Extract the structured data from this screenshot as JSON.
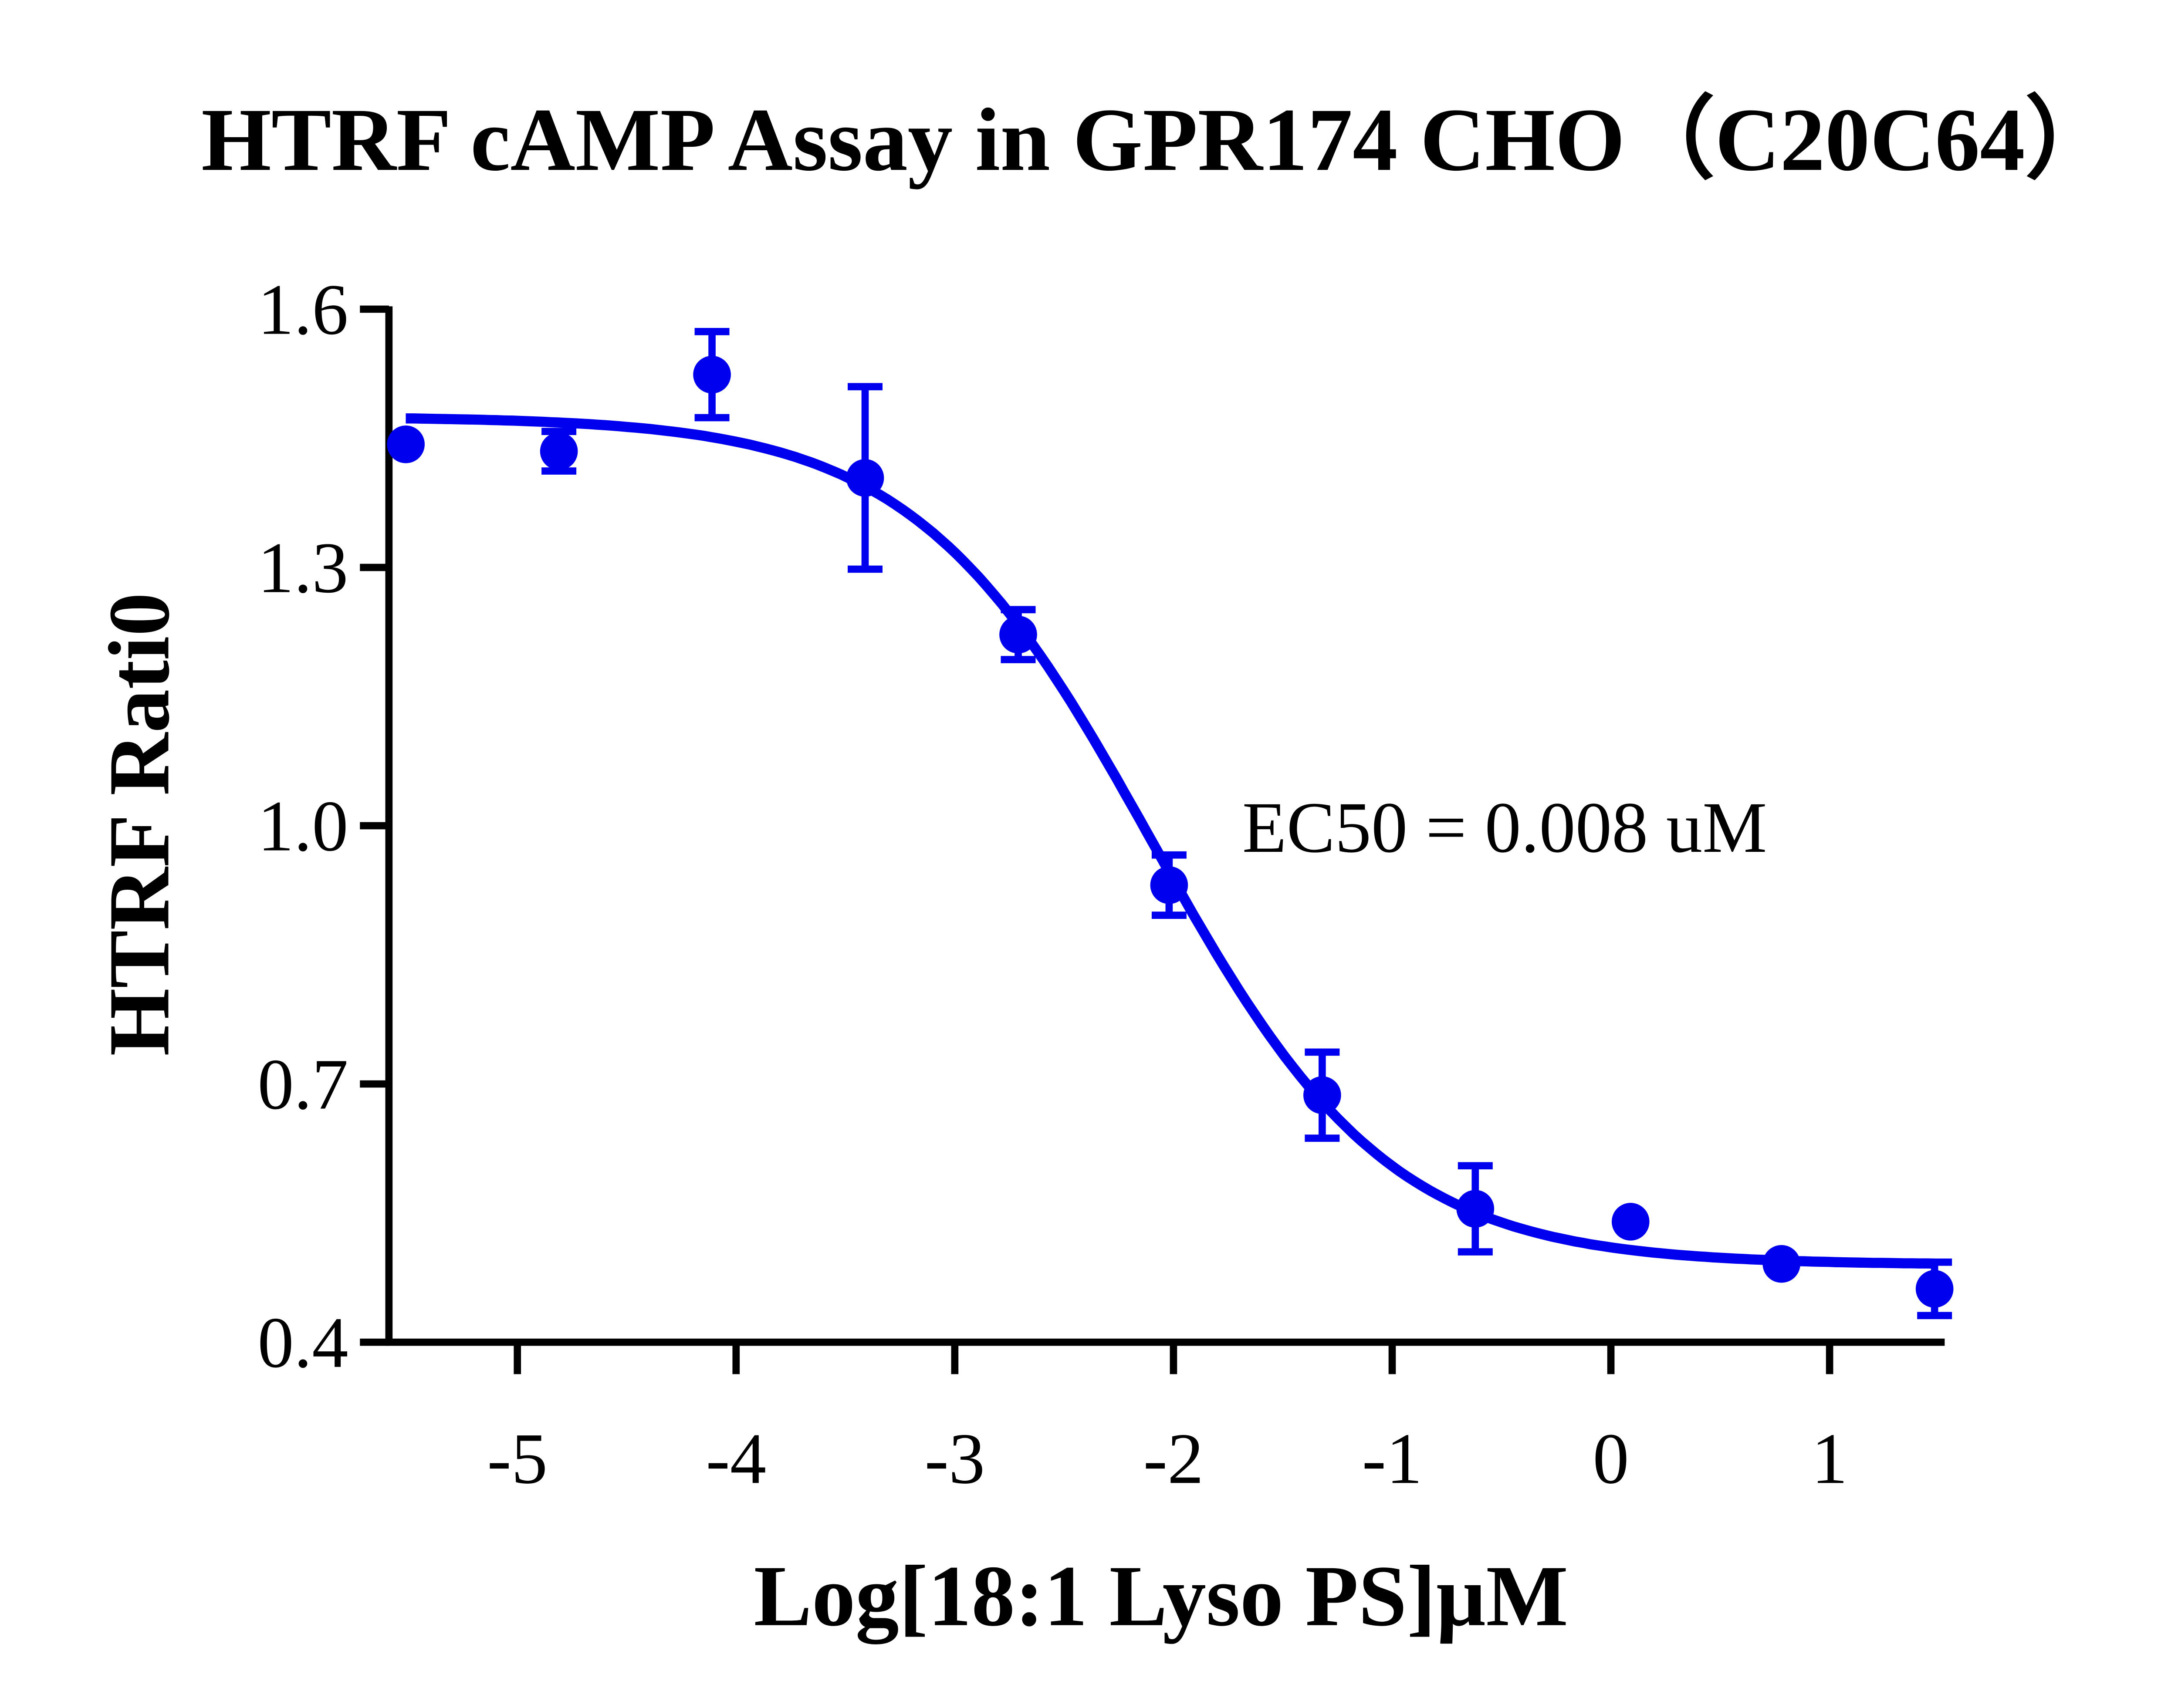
{
  "chart_data": {
    "type": "scatter",
    "title": "HTRF cAMP Assay in GPR174 CHO（C20C64）",
    "xlabel": "Log[18:1 Lyso PS]µM",
    "ylabel": "HTRF Rati0",
    "xlim": [
      -5.6,
      1.55
    ],
    "ylim": [
      0.4,
      1.6
    ],
    "xticks": [
      -5,
      -4,
      -3,
      -2,
      -1,
      0,
      1
    ],
    "xtick_labels": [
      "-5",
      "-4",
      "-3",
      "-2",
      "-1",
      "0",
      "1"
    ],
    "yticks": [
      0.4,
      0.7,
      1.0,
      1.3,
      1.6
    ],
    "ytick_labels": [
      "0.4",
      "0.7",
      "1.0",
      "1.3",
      "1.6"
    ],
    "grid": false,
    "color": "#0000ee",
    "points": {
      "x": [
        -5.51,
        -4.81,
        -4.11,
        -3.41,
        -2.71,
        -2.02,
        -1.32,
        -0.62,
        0.09,
        0.78,
        1.48
      ],
      "y": [
        1.443,
        1.435,
        1.524,
        1.404,
        1.222,
        0.931,
        0.687,
        0.555,
        0.54,
        0.491,
        0.462
      ],
      "error": [
        0,
        0.023,
        0.05,
        0.106,
        0.029,
        0.035,
        0.05,
        0.05,
        0,
        0,
        0.031
      ]
    },
    "fit": {
      "model": "four-parameter logistic",
      "top": 1.475,
      "bottom": 0.49,
      "logEC50": -2.1,
      "hill_slope": -0.8
    },
    "annotation": "EC50 = 0.008 uM"
  }
}
